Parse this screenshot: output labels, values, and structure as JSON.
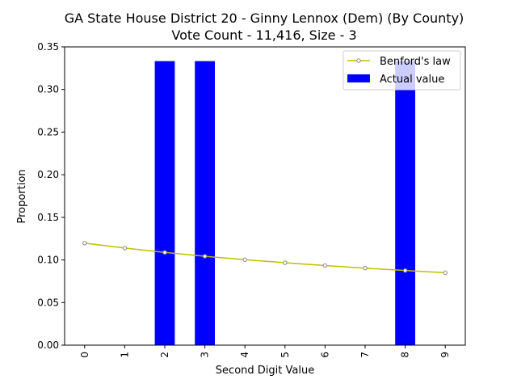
{
  "chart_data": {
    "type": "bar",
    "title_line1": "GA State House District 20 - Ginny Lennox (Dem) (By County)",
    "title_line2": "Vote Count - 11,416, Size - 3",
    "xlabel": "Second Digit Value",
    "ylabel": "Proportion",
    "categories": [
      "0",
      "1",
      "2",
      "3",
      "4",
      "5",
      "6",
      "7",
      "8",
      "9"
    ],
    "ylim": [
      0,
      0.35
    ],
    "yticks": [
      "0.00",
      "0.05",
      "0.10",
      "0.15",
      "0.20",
      "0.25",
      "0.30",
      "0.35"
    ],
    "grid": false,
    "legend_position": "top-right",
    "series": [
      {
        "name": "Actual value",
        "type": "bar",
        "color": "#0000ff",
        "values": [
          0,
          0,
          0.3333,
          0.3333,
          0,
          0,
          0,
          0,
          0.3333,
          0
        ]
      },
      {
        "name": "Benford's law",
        "type": "line",
        "color": "#bfbf00",
        "marker_color": "#888888",
        "values": [
          0.1197,
          0.1139,
          0.1088,
          0.1043,
          0.1003,
          0.0967,
          0.0934,
          0.0904,
          0.0876,
          0.085
        ]
      }
    ]
  }
}
